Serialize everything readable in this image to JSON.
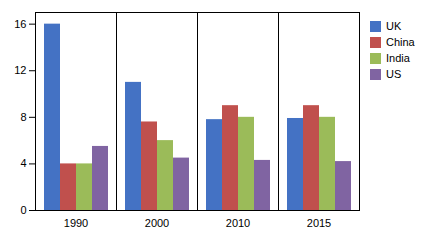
{
  "chart_data": {
    "type": "bar",
    "categories": [
      "1990",
      "2000",
      "2010",
      "2015"
    ],
    "series": [
      {
        "name": "UK",
        "color": "#4472C4",
        "values": [
          16.0,
          11.0,
          7.8,
          7.9
        ]
      },
      {
        "name": "China",
        "color": "#C0504D",
        "values": [
          4.0,
          7.6,
          9.0,
          9.0
        ]
      },
      {
        "name": "India",
        "color": "#9BBB59",
        "values": [
          4.0,
          6.0,
          8.0,
          8.0
        ]
      },
      {
        "name": "US",
        "color": "#8064A2",
        "values": [
          5.5,
          4.5,
          4.3,
          4.2
        ]
      }
    ],
    "ylim": [
      0,
      17
    ],
    "yticks": [
      0,
      4,
      8,
      12,
      16
    ],
    "grid": false,
    "legend": "right"
  }
}
